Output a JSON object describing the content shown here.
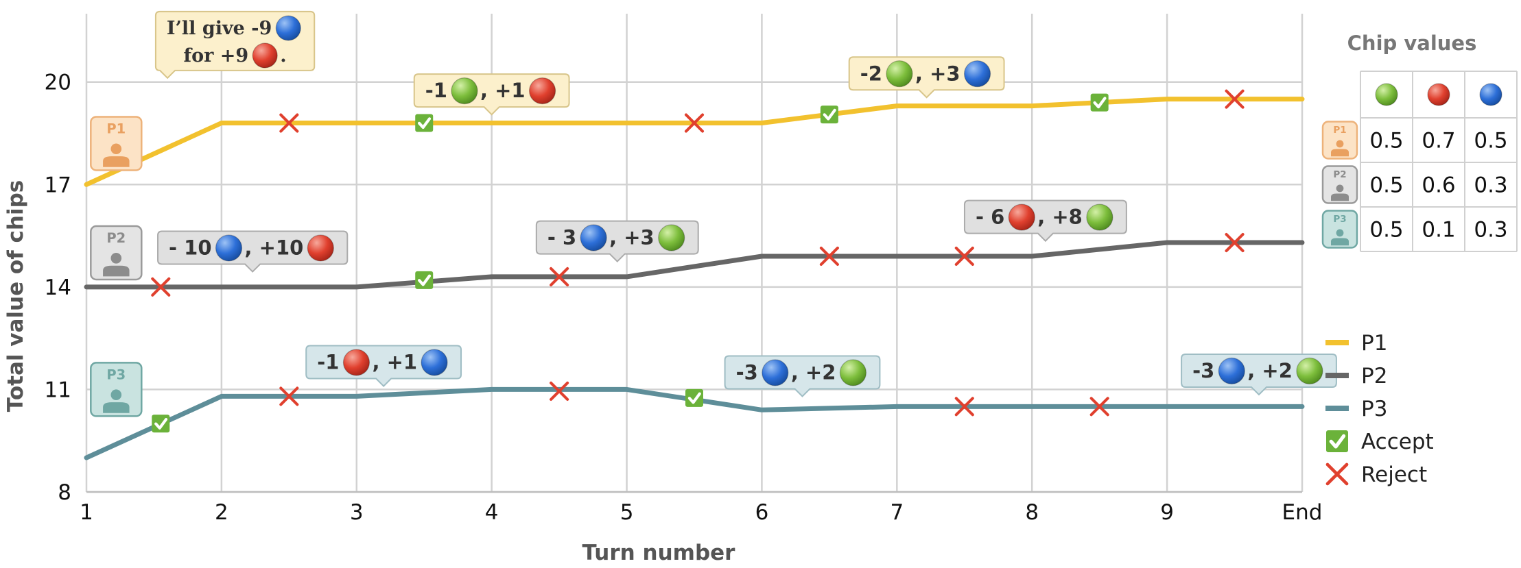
{
  "chart_data": {
    "type": "line",
    "xlabel": "Turn number",
    "ylabel": "Total value of chips",
    "x_ticks": [
      "1",
      "2",
      "3",
      "4",
      "5",
      "6",
      "7",
      "8",
      "9",
      "End"
    ],
    "y_ticks": [
      8,
      11,
      14,
      17,
      20
    ],
    "ylim": [
      8,
      22
    ],
    "grid": true,
    "legend_position": "right",
    "series": [
      {
        "name": "P1",
        "color": "#F2C12E",
        "x": [
          1,
          2,
          3,
          4,
          5,
          6,
          7,
          8,
          9,
          10
        ],
        "values": [
          17.0,
          18.8,
          18.8,
          18.8,
          18.8,
          18.8,
          19.3,
          19.3,
          19.5,
          19.5
        ]
      },
      {
        "name": "P2",
        "color": "#666666",
        "x": [
          1,
          2,
          3,
          4,
          5,
          6,
          7,
          8,
          9,
          10
        ],
        "values": [
          14.0,
          14.0,
          14.0,
          14.3,
          14.3,
          14.9,
          14.9,
          14.9,
          15.3,
          15.3
        ]
      },
      {
        "name": "P3",
        "color": "#5E8E99",
        "x": [
          1,
          2,
          3,
          4,
          5,
          6,
          7,
          8,
          9,
          10
        ],
        "values": [
          9.0,
          10.8,
          10.8,
          11.0,
          11.0,
          10.4,
          10.5,
          10.5,
          10.5,
          10.5
        ]
      }
    ],
    "markers": [
      {
        "player": "P1",
        "type": "reject",
        "x": 2.5,
        "y": 18.8
      },
      {
        "player": "P1",
        "type": "accept",
        "x": 3.5,
        "y": 18.8
      },
      {
        "player": "P1",
        "type": "reject",
        "x": 5.5,
        "y": 18.8
      },
      {
        "player": "P1",
        "type": "accept",
        "x": 6.5,
        "y": 19.05
      },
      {
        "player": "P1",
        "type": "accept",
        "x": 8.5,
        "y": 19.4
      },
      {
        "player": "P1",
        "type": "reject",
        "x": 9.5,
        "y": 19.5
      },
      {
        "player": "P2",
        "type": "reject",
        "x": 1.55,
        "y": 14.0
      },
      {
        "player": "P2",
        "type": "accept",
        "x": 3.5,
        "y": 14.2
      },
      {
        "player": "P2",
        "type": "reject",
        "x": 4.5,
        "y": 14.3
      },
      {
        "player": "P2",
        "type": "reject",
        "x": 6.5,
        "y": 14.9
      },
      {
        "player": "P2",
        "type": "reject",
        "x": 7.5,
        "y": 14.9
      },
      {
        "player": "P2",
        "type": "reject",
        "x": 9.5,
        "y": 15.3
      },
      {
        "player": "P3",
        "type": "accept",
        "x": 1.55,
        "y": 10.0
      },
      {
        "player": "P3",
        "type": "reject",
        "x": 2.5,
        "y": 10.8
      },
      {
        "player": "P3",
        "type": "reject",
        "x": 4.5,
        "y": 10.95
      },
      {
        "player": "P3",
        "type": "accept",
        "x": 5.5,
        "y": 10.75
      },
      {
        "player": "P3",
        "type": "reject",
        "x": 7.5,
        "y": 10.5
      },
      {
        "player": "P3",
        "type": "reject",
        "x": 8.5,
        "y": 10.5
      }
    ],
    "offers": [
      {
        "player": "P1",
        "x": 2.1,
        "y": 21.2,
        "pointer_x": 1.6,
        "parts": [
          {
            "text": "I’ll give -9"
          },
          {
            "chip": "blue"
          },
          {
            "br": true
          },
          {
            "text": "for +9"
          },
          {
            "chip": "red"
          },
          {
            "text": "."
          }
        ]
      },
      {
        "player": "P1",
        "x": 4.0,
        "y": 19.75,
        "pointer_x": 4.0,
        "parts": [
          {
            "text": "-1"
          },
          {
            "chip": "green"
          },
          {
            "text": ", +1"
          },
          {
            "chip": "red"
          }
        ]
      },
      {
        "player": "P1",
        "x": 7.22,
        "y": 20.25,
        "pointer_x": 7.22,
        "parts": [
          {
            "text": "-2"
          },
          {
            "chip": "green"
          },
          {
            "text": ", +3"
          },
          {
            "chip": "blue"
          }
        ]
      },
      {
        "player": "P2",
        "x": 2.23,
        "y": 15.15,
        "pointer_x": 2.23,
        "parts": [
          {
            "text": "- 10"
          },
          {
            "chip": "blue"
          },
          {
            "text": ", +10"
          },
          {
            "chip": "red"
          }
        ]
      },
      {
        "player": "P2",
        "x": 4.93,
        "y": 15.45,
        "pointer_x": 4.93,
        "parts": [
          {
            "text": "- 3"
          },
          {
            "chip": "blue"
          },
          {
            "text": ", +3"
          },
          {
            "chip": "green"
          }
        ]
      },
      {
        "player": "P2",
        "x": 8.1,
        "y": 16.05,
        "pointer_x": 8.1,
        "parts": [
          {
            "text": "- 6"
          },
          {
            "chip": "red"
          },
          {
            "text": ", +8"
          },
          {
            "chip": "green"
          }
        ]
      },
      {
        "player": "P3",
        "x": 3.2,
        "y": 11.8,
        "pointer_x": 3.2,
        "parts": [
          {
            "text": "-1"
          },
          {
            "chip": "red"
          },
          {
            "text": ", +1"
          },
          {
            "chip": "blue"
          }
        ]
      },
      {
        "player": "P3",
        "x": 6.3,
        "y": 11.5,
        "pointer_x": 6.3,
        "parts": [
          {
            "text": "-3"
          },
          {
            "chip": "blue"
          },
          {
            "text": ", +2"
          },
          {
            "chip": "green"
          }
        ]
      },
      {
        "player": "P3",
        "x": 9.68,
        "y": 11.55,
        "pointer_x": 9.68,
        "parts": [
          {
            "text": "-3"
          },
          {
            "chip": "blue"
          },
          {
            "text": ", +2"
          },
          {
            "chip": "green"
          }
        ]
      }
    ],
    "players": [
      {
        "id": "P1",
        "x": 1.22,
        "y": 18.2
      },
      {
        "id": "P2",
        "x": 1.22,
        "y": 15.0
      },
      {
        "id": "P3",
        "x": 1.22,
        "y": 11.0
      }
    ],
    "chip_values": {
      "title": "Chip values",
      "columns": [
        "green",
        "red",
        "blue"
      ],
      "rows": [
        {
          "player": "P1",
          "values": [
            0.5,
            0.7,
            0.5
          ]
        },
        {
          "player": "P2",
          "values": [
            0.5,
            0.6,
            0.3
          ]
        },
        {
          "player": "P3",
          "values": [
            0.5,
            0.1,
            0.3
          ]
        }
      ]
    },
    "legend": [
      {
        "type": "line",
        "label": "P1",
        "color": "#F2C12E"
      },
      {
        "type": "line",
        "label": "P2",
        "color": "#666666"
      },
      {
        "type": "line",
        "label": "P3",
        "color": "#5E8E99"
      },
      {
        "type": "accept",
        "label": "Accept"
      },
      {
        "type": "reject",
        "label": "Reject"
      }
    ],
    "player_styles": {
      "P1": {
        "bubble_fill": "#FCF0CC",
        "bubble_stroke": "#D8C58A",
        "avatar_fill": "#FCE3C6",
        "avatar_stroke": "#EDB27A",
        "avatar_ink": "#E9A060"
      },
      "P2": {
        "bubble_fill": "#E0E0E0",
        "bubble_stroke": "#ABABAB",
        "avatar_fill": "#E4E4E4",
        "avatar_stroke": "#9A9A9A",
        "avatar_ink": "#8C8C8C"
      },
      "P3": {
        "bubble_fill": "#D6E6EA",
        "bubble_stroke": "#9FBDC4",
        "avatar_fill": "#C9E3E0",
        "avatar_stroke": "#6FA7A3",
        "avatar_ink": "#6FA7A3"
      }
    },
    "chip_colors": {
      "green": "#7DBE3C",
      "red": "#E0402E",
      "blue": "#2D6FD8"
    },
    "accept_color": "#6BB23A",
    "reject_color": "#E0402E"
  }
}
